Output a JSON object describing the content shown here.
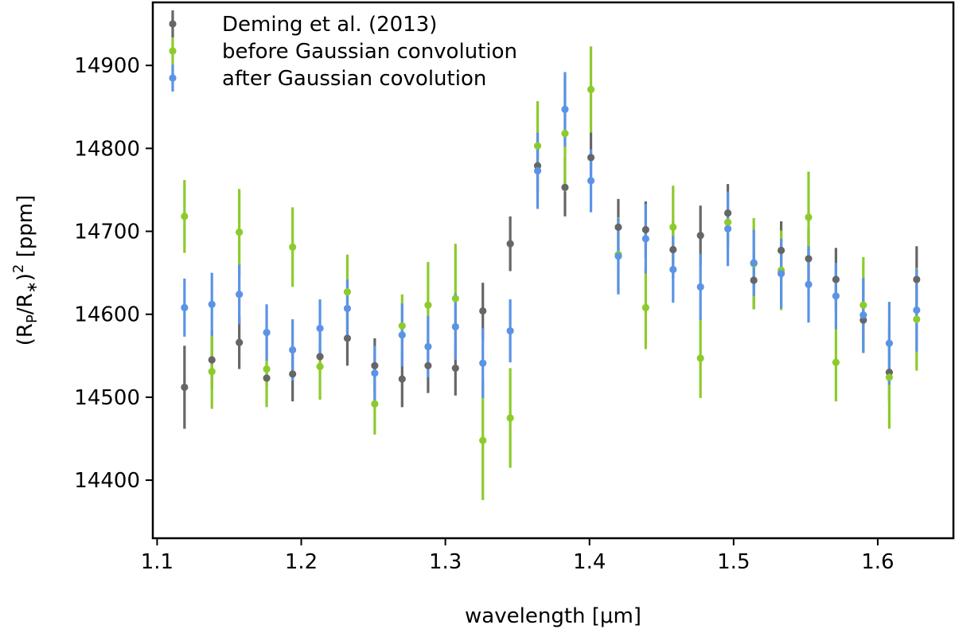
{
  "chart_data": {
    "type": "scatter",
    "title": "",
    "xlabel": "wavelength [μm]",
    "ylabel": "(R_P/R_*)^2 [ppm]",
    "xlim": [
      1.097,
      1.6525
    ],
    "ylim": [
      14330,
      14976
    ],
    "xticks": [
      "1.1",
      "1.2",
      "1.3",
      "1.4",
      "1.5",
      "1.6"
    ],
    "yticks": [
      "14400",
      "14500",
      "14600",
      "14700",
      "14800",
      "14900"
    ],
    "legend_position": "top-left",
    "x": [
      1.119,
      1.138,
      1.157,
      1.176,
      1.194,
      1.213,
      1.232,
      1.251,
      1.27,
      1.288,
      1.307,
      1.326,
      1.345,
      1.364,
      1.383,
      1.401,
      1.42,
      1.439,
      1.458,
      1.477,
      1.496,
      1.514,
      1.533,
      1.552,
      1.571,
      1.59,
      1.608,
      1.627
    ],
    "series": [
      {
        "name": "Deming et al. (2013)",
        "color": "#666666",
        "values": [
          14512,
          14545,
          14566,
          14523,
          14528,
          14549,
          14571,
          14538,
          14522,
          14538,
          14535,
          14604,
          14685,
          14779,
          14753,
          14789,
          14705,
          14702,
          14678,
          14695,
          14722,
          14641,
          14677,
          14667,
          14642,
          14593,
          14530,
          14642
        ],
        "errors": [
          50,
          35,
          32,
          10,
          33,
          11,
          33,
          33,
          34,
          33,
          33,
          34,
          33,
          33,
          35,
          30,
          34,
          34,
          34,
          36,
          35,
          35,
          35,
          36,
          38,
          35,
          35,
          40
        ]
      },
      {
        "name": "before Gaussian convolution",
        "color": "#8ccb2c",
        "values": [
          14718,
          14531,
          14699,
          14534,
          14681,
          14537,
          14627,
          14492,
          14586,
          14611,
          14619,
          14448,
          14475,
          14803,
          14818,
          14871,
          14672,
          14608,
          14705,
          14547,
          14711,
          14661,
          14653,
          14717,
          14542,
          14611,
          14524,
          14594
        ],
        "errors": [
          44,
          45,
          52,
          46,
          48,
          40,
          45,
          37,
          38,
          52,
          66,
          72,
          60,
          54,
          70,
          52,
          45,
          50,
          50,
          48,
          32,
          55,
          48,
          55,
          47,
          58,
          62,
          62
        ]
      },
      {
        "name": "after Gaussian covolution",
        "color": "#5b93e6",
        "values": [
          14608,
          14612,
          14624,
          14578,
          14557,
          14583,
          14607,
          14529,
          14575,
          14561,
          14585,
          14541,
          14580,
          14773,
          14847,
          14761,
          14670,
          14691,
          14654,
          14633,
          14703,
          14662,
          14649,
          14636,
          14622,
          14599,
          14565,
          14605
        ]
      }
    ]
  }
}
